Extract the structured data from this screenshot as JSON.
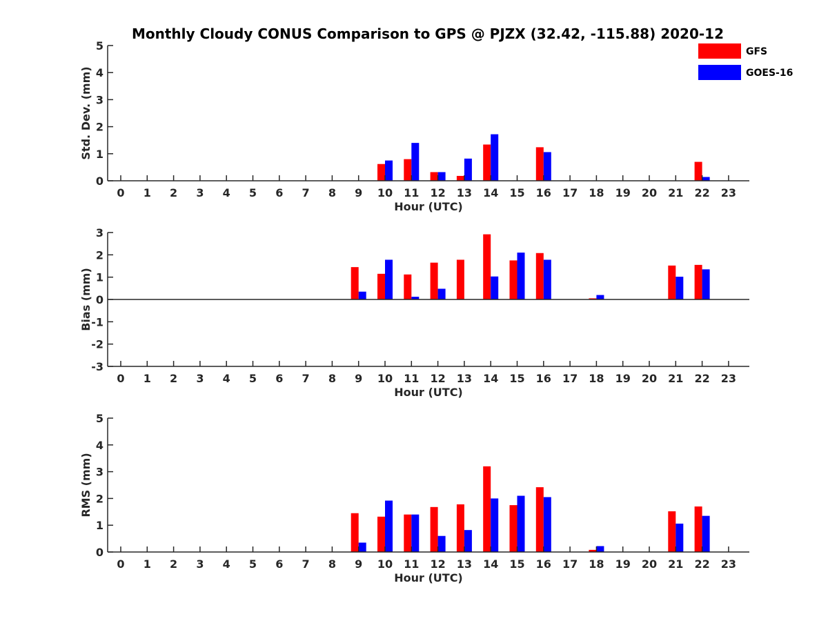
{
  "title": "Monthly Cloudy CONUS Comparison to GPS @ PJZX (32.42, -115.88) 2020-12",
  "colors": {
    "GFS": "#ff0000",
    "GOES-16": "#0000ff",
    "axis": "#262626"
  },
  "legend": [
    {
      "name": "GFS",
      "color": "#ff0000"
    },
    {
      "name": "GOES-16",
      "color": "#0000ff"
    }
  ],
  "chart_data": [
    {
      "type": "bar",
      "ylabel": "Std. Dev. (mm)",
      "xlabel": "Hour (UTC)",
      "ylim": [
        0,
        5
      ],
      "yticks": [
        0,
        1,
        2,
        3,
        4,
        5
      ],
      "categories": [
        "0",
        "1",
        "2",
        "3",
        "4",
        "5",
        "6",
        "7",
        "8",
        "9",
        "10",
        "11",
        "12",
        "13",
        "14",
        "15",
        "16",
        "17",
        "18",
        "19",
        "20",
        "21",
        "22",
        "23"
      ],
      "series": [
        {
          "name": "GFS",
          "values": [
            null,
            null,
            null,
            null,
            null,
            null,
            null,
            null,
            null,
            null,
            0.62,
            0.8,
            0.32,
            0.18,
            1.34,
            null,
            1.24,
            null,
            null,
            null,
            null,
            null,
            0.7,
            null
          ]
        },
        {
          "name": "GOES-16",
          "values": [
            null,
            null,
            null,
            null,
            null,
            null,
            null,
            null,
            null,
            null,
            0.75,
            1.4,
            0.32,
            0.82,
            1.72,
            null,
            1.06,
            null,
            null,
            null,
            null,
            null,
            0.14,
            null
          ]
        }
      ]
    },
    {
      "type": "bar",
      "ylabel": "Bias (mm)",
      "xlabel": "Hour (UTC)",
      "ylim": [
        -3,
        3
      ],
      "yticks": [
        -3,
        -2,
        -1,
        0,
        1,
        2,
        3
      ],
      "categories": [
        "0",
        "1",
        "2",
        "3",
        "4",
        "5",
        "6",
        "7",
        "8",
        "9",
        "10",
        "11",
        "12",
        "13",
        "14",
        "15",
        "16",
        "17",
        "18",
        "19",
        "20",
        "21",
        "22",
        "23"
      ],
      "series": [
        {
          "name": "GFS",
          "values": [
            null,
            null,
            null,
            null,
            null,
            null,
            null,
            null,
            null,
            1.45,
            1.15,
            1.12,
            1.65,
            1.78,
            2.92,
            1.75,
            2.08,
            null,
            0.05,
            null,
            null,
            1.52,
            1.55,
            null
          ]
        },
        {
          "name": "GOES-16",
          "values": [
            null,
            null,
            null,
            null,
            null,
            null,
            null,
            null,
            null,
            0.35,
            1.78,
            0.12,
            0.48,
            null,
            1.03,
            2.1,
            1.78,
            null,
            0.2,
            null,
            null,
            1.02,
            1.35,
            null
          ]
        }
      ]
    },
    {
      "type": "bar",
      "ylabel": "RMS (mm)",
      "xlabel": "Hour (UTC)",
      "ylim": [
        0,
        5
      ],
      "yticks": [
        0,
        1,
        2,
        3,
        4,
        5
      ],
      "categories": [
        "0",
        "1",
        "2",
        "3",
        "4",
        "5",
        "6",
        "7",
        "8",
        "9",
        "10",
        "11",
        "12",
        "13",
        "14",
        "15",
        "16",
        "17",
        "18",
        "19",
        "20",
        "21",
        "22",
        "23"
      ],
      "series": [
        {
          "name": "GFS",
          "values": [
            null,
            null,
            null,
            null,
            null,
            null,
            null,
            null,
            null,
            1.45,
            1.32,
            1.4,
            1.68,
            1.78,
            3.2,
            1.75,
            2.42,
            null,
            0.08,
            null,
            null,
            1.52,
            1.7,
            null
          ]
        },
        {
          "name": "GOES-16",
          "values": [
            null,
            null,
            null,
            null,
            null,
            null,
            null,
            null,
            null,
            0.35,
            1.92,
            1.4,
            0.6,
            0.82,
            2.0,
            2.1,
            2.05,
            null,
            0.22,
            null,
            null,
            1.06,
            1.35,
            null
          ]
        }
      ]
    }
  ]
}
